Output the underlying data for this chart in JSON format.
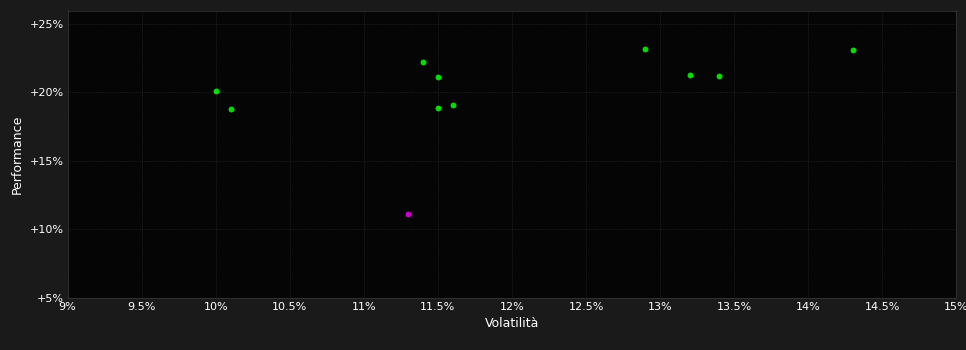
{
  "background_color": "#1a1a1a",
  "plot_bg_color": "#050505",
  "grid_color": "#3a3a3a",
  "text_color": "#ffffff",
  "xlabel": "Volatilità",
  "ylabel": "Performance",
  "xlim": [
    0.09,
    0.15
  ],
  "ylim": [
    0.05,
    0.26
  ],
  "xticks": [
    0.09,
    0.095,
    0.1,
    0.105,
    0.11,
    0.115,
    0.12,
    0.125,
    0.13,
    0.135,
    0.14,
    0.145,
    0.15
  ],
  "yticks": [
    0.05,
    0.1,
    0.15,
    0.2,
    0.25
  ],
  "ytick_labels": [
    "+5%",
    "+10%",
    "+15%",
    "+20%",
    "+25%"
  ],
  "xtick_labels": [
    "9%",
    "9.5%",
    "10%",
    "10.5%",
    "11%",
    "11.5%",
    "12%",
    "12.5%",
    "13%",
    "13.5%",
    "14%",
    "14.5%",
    "15%"
  ],
  "green_points": [
    [
      0.1,
      0.201
    ],
    [
      0.101,
      0.188
    ],
    [
      0.114,
      0.222
    ],
    [
      0.115,
      0.211
    ],
    [
      0.115,
      0.189
    ],
    [
      0.116,
      0.191
    ],
    [
      0.129,
      0.232
    ],
    [
      0.132,
      0.213
    ],
    [
      0.134,
      0.212
    ],
    [
      0.143,
      0.231
    ]
  ],
  "magenta_points": [
    [
      0.113,
      0.111
    ]
  ],
  "green_color": "#00dd00",
  "magenta_color": "#cc00cc",
  "marker_size": 18,
  "font_size_ticks": 8,
  "font_size_labels": 9
}
